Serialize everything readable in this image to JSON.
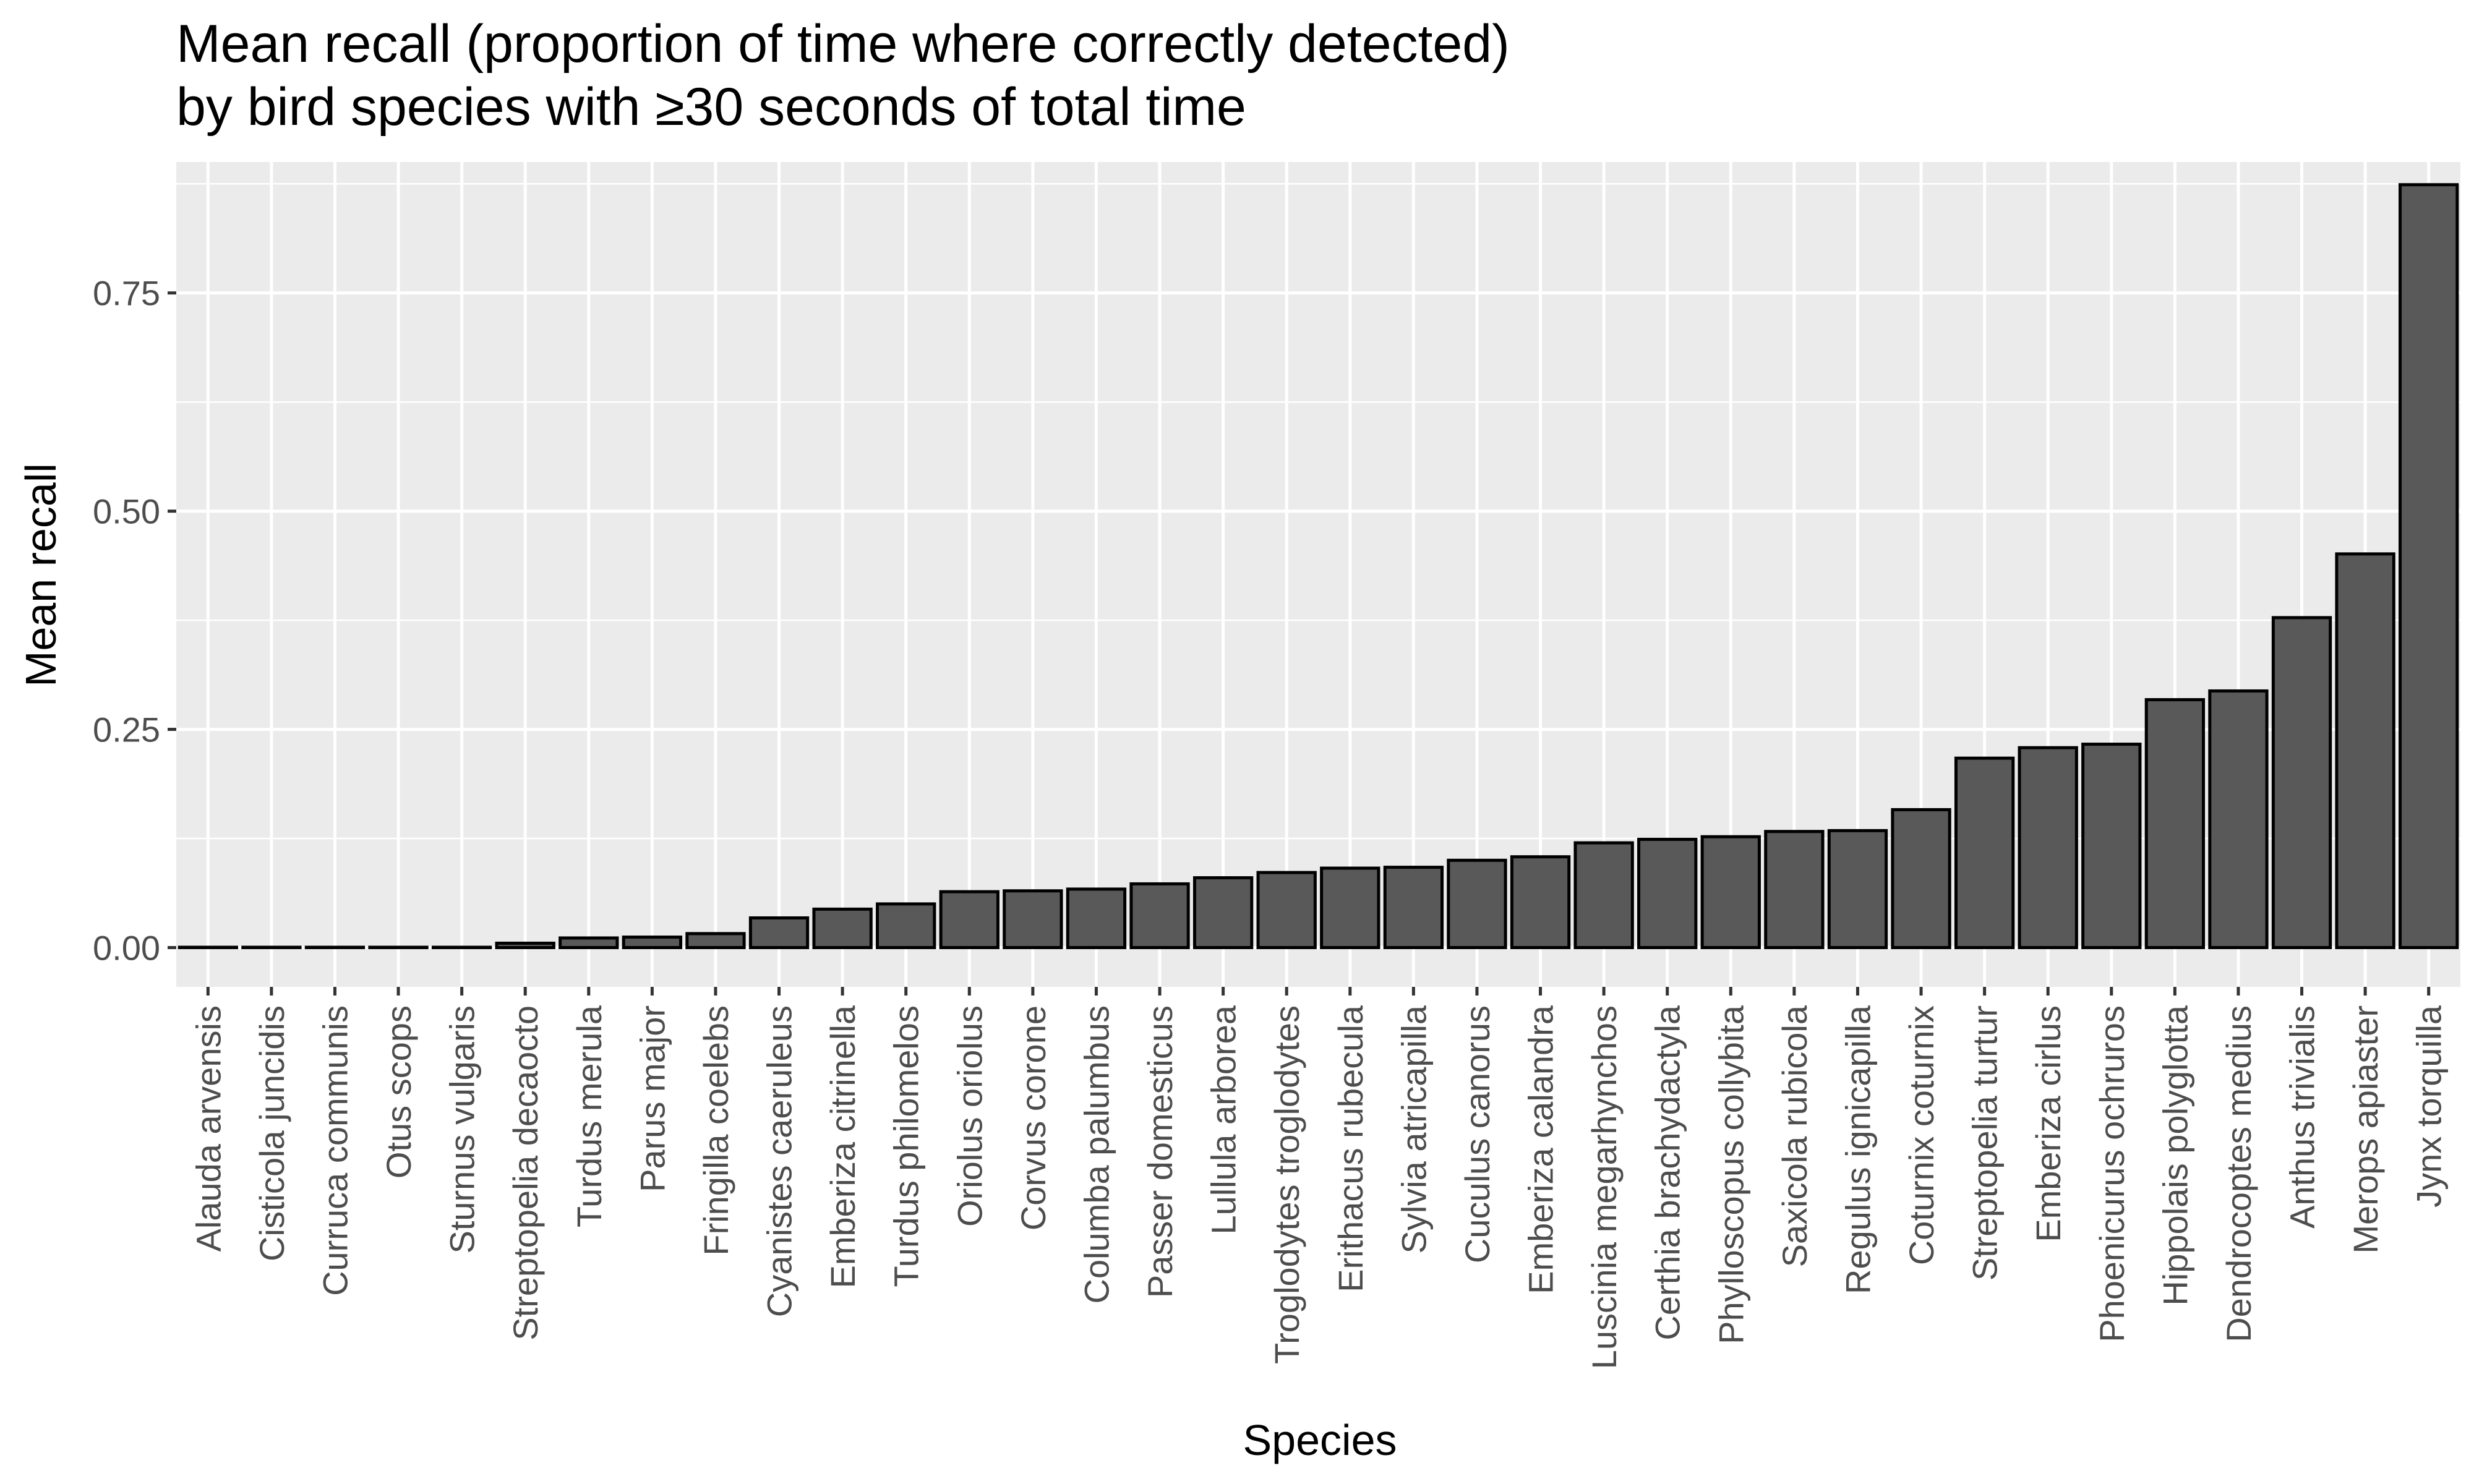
{
  "chart_data": {
    "type": "bar",
    "title": "Mean recall (proportion of time where correctly detected)",
    "subtitle": "by bird species with ≥30 seconds of total time",
    "xlabel": "Species",
    "ylabel": "Mean recall",
    "ylim": [
      -0.045,
      0.9
    ],
    "yticks": [
      0.0,
      0.25,
      0.5,
      0.75
    ],
    "ytick_labels": [
      "0.00",
      "0.25",
      "0.50",
      "0.75"
    ],
    "grid": true,
    "legend": "none",
    "colors": {
      "panel_bg": "#ebebeb",
      "grid": "#ffffff",
      "bar_fill": "#595959",
      "bar_stroke": "#000000",
      "tick_text": "#4d4d4d",
      "tick_mark": "#333333"
    },
    "categories": [
      "Alauda arvensis",
      "Cisticola juncidis",
      "Curruca communis",
      "Otus scops",
      "Sturnus vulgaris",
      "Streptopelia decaocto",
      "Turdus merula",
      "Parus major",
      "Fringilla coelebs",
      "Cyanistes caeruleus",
      "Emberiza citrinella",
      "Turdus philomelos",
      "Oriolus oriolus",
      "Corvus corone",
      "Columba palumbus",
      "Passer domesticus",
      "Lullula arborea",
      "Troglodytes troglodytes",
      "Erithacus rubecula",
      "Sylvia atricapilla",
      "Cuculus canorus",
      "Emberiza calandra",
      "Luscinia megarhynchos",
      "Certhia brachydactyla",
      "Phylloscopus collybita",
      "Saxicola rubicola",
      "Regulus ignicapilla",
      "Coturnix coturnix",
      "Streptopelia turtur",
      "Emberiza cirlus",
      "Phoenicurus ochruros",
      "Hippolais polyglotta",
      "Dendrocoptes medius",
      "Anthus trivialis",
      "Merops apiaster",
      "Jynx torquilla"
    ],
    "values": [
      0.0,
      0.0,
      0.0,
      0.0,
      0.0,
      0.005,
      0.011,
      0.012,
      0.016,
      0.034,
      0.044,
      0.05,
      0.064,
      0.065,
      0.067,
      0.073,
      0.08,
      0.086,
      0.091,
      0.092,
      0.1,
      0.104,
      0.12,
      0.124,
      0.127,
      0.133,
      0.134,
      0.158,
      0.217,
      0.229,
      0.233,
      0.284,
      0.294,
      0.378,
      0.451,
      0.874
    ]
  }
}
